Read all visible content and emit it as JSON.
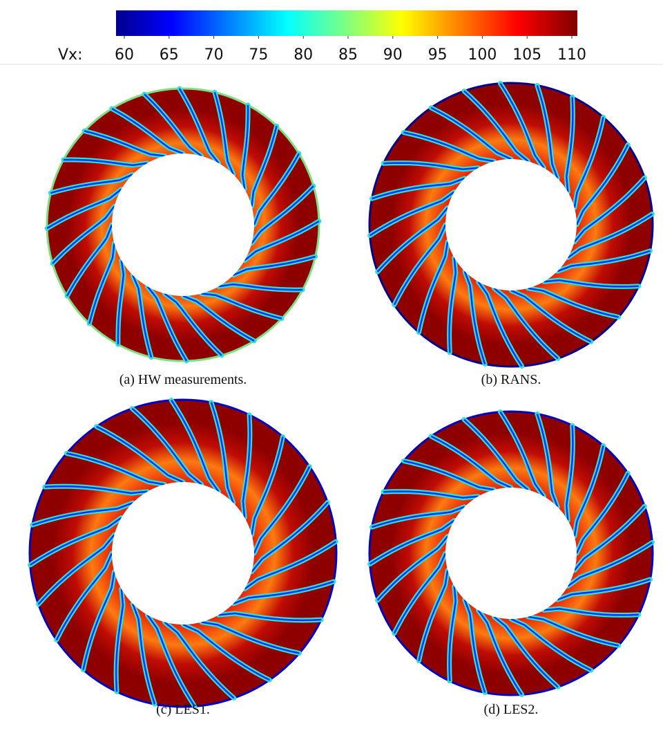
{
  "colorbar": {
    "label": "Vx:",
    "lim": [
      60,
      110
    ],
    "ticks": [
      60,
      65,
      70,
      75,
      80,
      85,
      90,
      95,
      100,
      105,
      110
    ]
  },
  "panels": [
    {
      "caption": "(a) HW measurements."
    },
    {
      "caption": "(b) RANS."
    },
    {
      "caption": "(c) LES1."
    },
    {
      "caption": "(d) LES2."
    }
  ]
}
